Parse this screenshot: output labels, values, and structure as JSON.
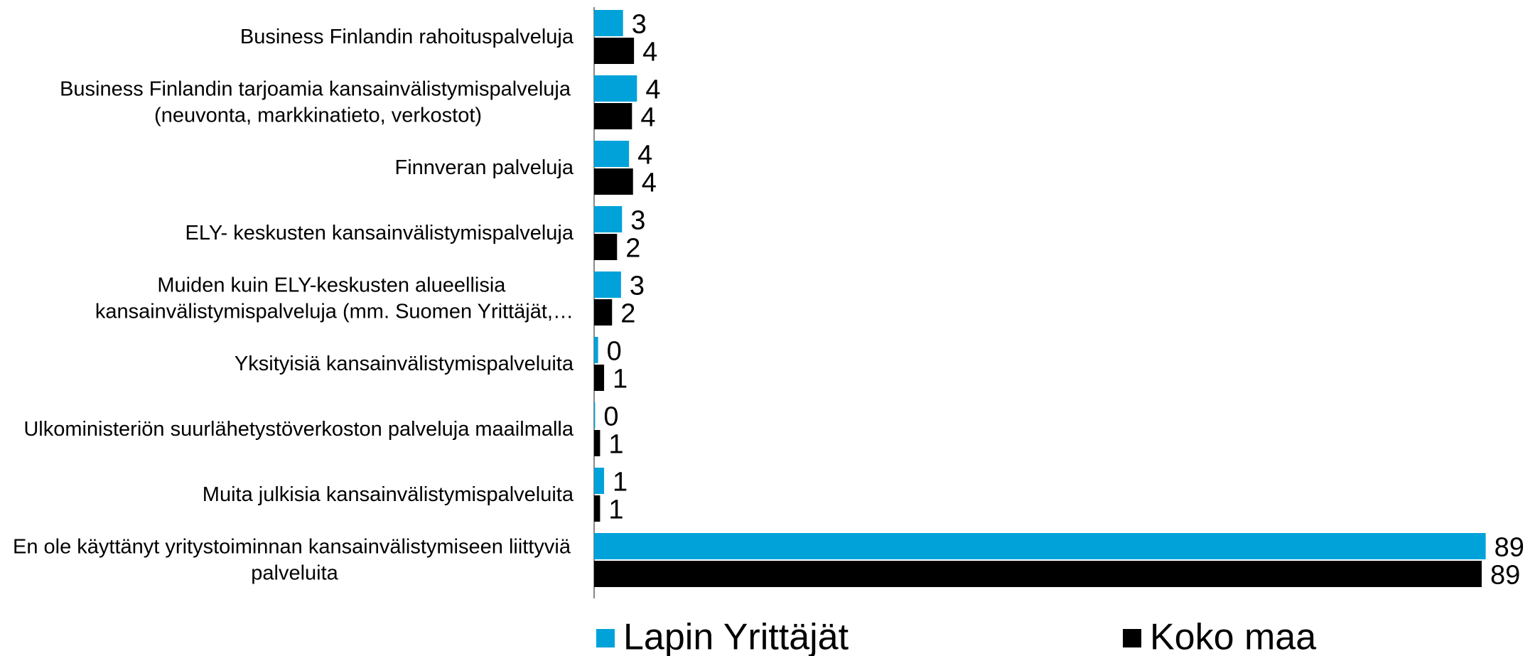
{
  "chart_data": {
    "type": "hbar",
    "categories": [
      "Business Finlandin rahoituspalveluja",
      "Business Finlandin tarjoamia kansainvälistymispalveluja (neuvonta, markkinatieto, verkostot)",
      "Finnveran palveluja",
      "ELY- keskusten kansainvälistymispalveluja",
      "Muiden kuin ELY-keskusten alueellisia kansainvälistymispalveluja (mm. Suomen Yrittäjät,…",
      "Yksityisiä kansainvälistymispalveluita",
      "Ulkoministeriön suurlähetystöverkoston palveluja maailmalla",
      "Muita julkisia kansainvälistymispalveluita",
      "En ole käyttänyt yritystoiminnan kansainvälistymiseen liittyviä palveluita"
    ],
    "series": [
      {
        "name": "Lapin Yrittäjät",
        "color": "#00a2d9",
        "values": [
          2.9,
          4.3,
          3.5,
          2.8,
          2.7,
          0.4,
          0.1,
          1.0,
          89.4
        ],
        "value_labels": [
          "3",
          "4",
          "4",
          "3",
          "3",
          "0",
          "0",
          "1",
          "89"
        ]
      },
      {
        "name": "Koko maa",
        "color": "#000000",
        "values": [
          4.0,
          3.8,
          3.9,
          2.3,
          1.8,
          1.0,
          0.6,
          0.6,
          89.0
        ],
        "value_labels": [
          "4",
          "4",
          "4",
          "2",
          "2",
          "1",
          "1",
          "1",
          "89"
        ]
      }
    ],
    "xlim": [
      0,
      90
    ]
  }
}
